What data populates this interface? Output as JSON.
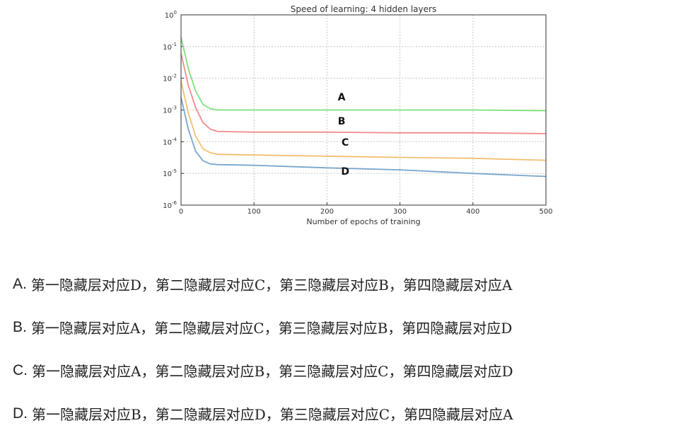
{
  "chart_data": {
    "type": "line",
    "title": "Speed of learning: 4 hidden layers",
    "xlabel": "Number of epochs of training",
    "ylabel": "",
    "xlim": [
      0,
      500
    ],
    "ylim_exponents": [
      -6,
      0
    ],
    "y_scale": "log",
    "grid": true,
    "x_ticks": [
      "0",
      "100",
      "200",
      "300",
      "400",
      "500"
    ],
    "y_ticks": [
      {
        "base": "10",
        "exp": "0"
      },
      {
        "base": "10",
        "exp": "-1"
      },
      {
        "base": "10",
        "exp": "-2"
      },
      {
        "base": "10",
        "exp": "-3"
      },
      {
        "base": "10",
        "exp": "-4"
      },
      {
        "base": "10",
        "exp": "-5"
      },
      {
        "base": "10",
        "exp": "-6"
      }
    ],
    "series": [
      {
        "name": "A",
        "color": "#7ee07e",
        "points": [
          [
            0,
            0.2
          ],
          [
            10,
            0.02
          ],
          [
            20,
            0.004
          ],
          [
            30,
            0.0015
          ],
          [
            40,
            0.0011
          ],
          [
            50,
            0.001
          ],
          [
            100,
            0.001
          ],
          [
            200,
            0.001
          ],
          [
            300,
            0.001
          ],
          [
            400,
            0.001
          ],
          [
            500,
            0.00095
          ]
        ]
      },
      {
        "name": "B",
        "color": "#f08c8c",
        "points": [
          [
            0,
            0.06
          ],
          [
            10,
            0.006
          ],
          [
            20,
            0.0012
          ],
          [
            30,
            0.0004
          ],
          [
            40,
            0.00025
          ],
          [
            50,
            0.00021
          ],
          [
            100,
            0.0002
          ],
          [
            200,
            0.0002
          ],
          [
            300,
            0.00019
          ],
          [
            400,
            0.00019
          ],
          [
            500,
            0.00018
          ]
        ]
      },
      {
        "name": "C",
        "color": "#f2c070",
        "points": [
          [
            0,
            0.008
          ],
          [
            10,
            0.0008
          ],
          [
            20,
            0.00015
          ],
          [
            30,
            6e-05
          ],
          [
            40,
            4.5e-05
          ],
          [
            50,
            4e-05
          ],
          [
            100,
            3.8e-05
          ],
          [
            200,
            3.5e-05
          ],
          [
            300,
            3.2e-05
          ],
          [
            400,
            3e-05
          ],
          [
            500,
            2.6e-05
          ]
        ]
      },
      {
        "name": "D",
        "color": "#7aa6cc",
        "points": [
          [
            0,
            0.0025
          ],
          [
            10,
            0.00025
          ],
          [
            20,
            5e-05
          ],
          [
            30,
            2.5e-05
          ],
          [
            40,
            2e-05
          ],
          [
            50,
            1.9e-05
          ],
          [
            100,
            1.8e-05
          ],
          [
            200,
            1.5e-05
          ],
          [
            300,
            1.3e-05
          ],
          [
            400,
            1e-05
          ],
          [
            500,
            8e-06
          ]
        ]
      }
    ],
    "annotations": [
      {
        "text": "A",
        "x": 220,
        "y": 0.002
      },
      {
        "text": "B",
        "x": 220,
        "y": 0.00035
      },
      {
        "text": "C",
        "x": 225,
        "y": 7.5e-05
      },
      {
        "text": "D",
        "x": 225,
        "y": 9e-06
      }
    ]
  },
  "options": [
    {
      "letter": "A.",
      "text": "第一隐藏层对应D，第二隐藏层对应C，第三隐藏层对应B，第四隐藏层对应A"
    },
    {
      "letter": "B.",
      "text": "第一隐藏层对应A，第二隐藏层对应C，第三隐藏层对应B，第四隐藏层对应D"
    },
    {
      "letter": "C.",
      "text": "第一隐藏层对应A，第二隐藏层对应B，第三隐藏层对应C，第四隐藏层对应D"
    },
    {
      "letter": "D.",
      "text": "第一隐藏层对应B，第二隐藏层对应D，第三隐藏层对应C，第四隐藏层对应A"
    }
  ]
}
